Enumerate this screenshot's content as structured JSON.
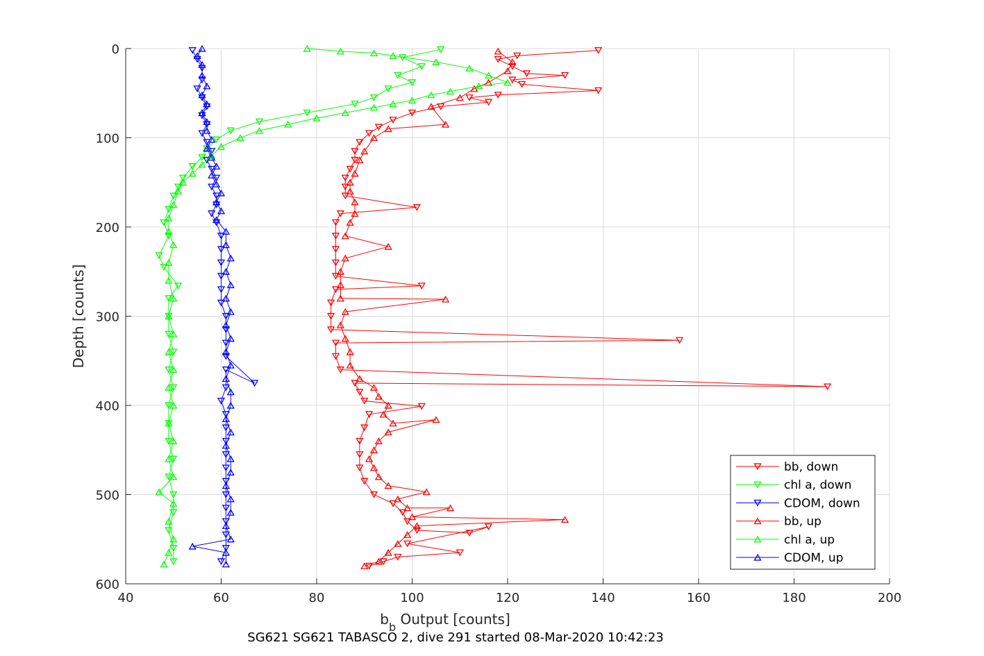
{
  "chart_data": {
    "type": "scatter",
    "title": "",
    "xlabel": "b",
    "xlabel_subscript": "b",
    "xlabel_rest": " Output [counts]",
    "ylabel": "Depth [counts]",
    "caption": "SG621 SG621 TABASCO 2, dive 291 started 08-Mar-2020 10:42:23",
    "xlim": [
      40,
      200
    ],
    "ylim": [
      0,
      600
    ],
    "y_reversed": true,
    "grid": true,
    "legend_placement": "bottom-right",
    "x_ticks": [
      "40",
      "60",
      "80",
      "100",
      "120",
      "140",
      "160",
      "180",
      "200"
    ],
    "y_ticks": [
      "0",
      "100",
      "200",
      "300",
      "400",
      "500",
      "600"
    ],
    "series": [
      {
        "name": "bb, down",
        "color": "#ff0000",
        "marker": "triangle-down",
        "points": [
          [
            139,
            2
          ],
          [
            122,
            8
          ],
          [
            118,
            12
          ],
          [
            121,
            20
          ],
          [
            124,
            28
          ],
          [
            132,
            30
          ],
          [
            121,
            35
          ],
          [
            123,
            40
          ],
          [
            139,
            47
          ],
          [
            118,
            52
          ],
          [
            112,
            55
          ],
          [
            116,
            60
          ],
          [
            106,
            65
          ],
          [
            100,
            72
          ],
          [
            96,
            80
          ],
          [
            93,
            88
          ],
          [
            91,
            95
          ],
          [
            89,
            105
          ],
          [
            88,
            115
          ],
          [
            88,
            125
          ],
          [
            87,
            135
          ],
          [
            86,
            145
          ],
          [
            86,
            155
          ],
          [
            86,
            165
          ],
          [
            101,
            178
          ],
          [
            85,
            185
          ],
          [
            84,
            195
          ],
          [
            84,
            210
          ],
          [
            84,
            225
          ],
          [
            84,
            240
          ],
          [
            84,
            255
          ],
          [
            102,
            266
          ],
          [
            84,
            270
          ],
          [
            83,
            285
          ],
          [
            83,
            300
          ],
          [
            83,
            315
          ],
          [
            156,
            327
          ],
          [
            84,
            330
          ],
          [
            84,
            345
          ],
          [
            85,
            360
          ],
          [
            187,
            379
          ],
          [
            88,
            375
          ],
          [
            89,
            385
          ],
          [
            90,
            395
          ],
          [
            102,
            401
          ],
          [
            91,
            410
          ],
          [
            90,
            425
          ],
          [
            89,
            440
          ],
          [
            89,
            455
          ],
          [
            89,
            470
          ],
          [
            90,
            485
          ],
          [
            92,
            500
          ],
          [
            96,
            510
          ],
          [
            98,
            520
          ],
          [
            99,
            530
          ],
          [
            101,
            540
          ],
          [
            112,
            543
          ],
          [
            116,
            536
          ],
          [
            99,
            555
          ],
          [
            110,
            565
          ],
          [
            97,
            570
          ],
          [
            94,
            575
          ],
          [
            91,
            580
          ]
        ]
      },
      {
        "name": "chl a, down",
        "color": "#00ff00",
        "marker": "triangle-down",
        "points": [
          [
            106,
            1
          ],
          [
            98,
            10
          ],
          [
            102,
            20
          ],
          [
            97,
            30
          ],
          [
            100,
            38
          ],
          [
            95,
            45
          ],
          [
            92,
            55
          ],
          [
            88,
            62
          ],
          [
            78,
            72
          ],
          [
            68,
            82
          ],
          [
            62,
            92
          ],
          [
            59,
            102
          ],
          [
            57,
            112
          ],
          [
            56,
            122
          ],
          [
            54,
            132
          ],
          [
            52,
            145
          ],
          [
            51,
            155
          ],
          [
            50,
            165
          ],
          [
            49,
            180
          ],
          [
            48,
            195
          ],
          [
            49,
            210
          ],
          [
            47,
            232
          ],
          [
            48,
            245
          ],
          [
            51,
            266
          ],
          [
            49,
            280
          ],
          [
            49,
            300
          ],
          [
            49,
            320
          ],
          [
            50,
            340
          ],
          [
            49,
            360
          ],
          [
            50,
            380
          ],
          [
            49,
            400
          ],
          [
            49,
            420
          ],
          [
            49,
            440
          ],
          [
            50,
            460
          ],
          [
            49,
            480
          ],
          [
            50,
            500
          ],
          [
            50,
            520
          ],
          [
            49,
            540
          ],
          [
            50,
            560
          ],
          [
            50,
            575
          ]
        ]
      },
      {
        "name": "CDOM, down",
        "color": "#0000ff",
        "marker": "triangle-down",
        "points": [
          [
            54,
            2
          ],
          [
            55,
            12
          ],
          [
            56,
            22
          ],
          [
            56,
            35
          ],
          [
            55,
            45
          ],
          [
            56,
            55
          ],
          [
            57,
            65
          ],
          [
            56,
            75
          ],
          [
            57,
            85
          ],
          [
            56,
            95
          ],
          [
            57,
            105
          ],
          [
            58,
            115
          ],
          [
            57,
            125
          ],
          [
            58,
            135
          ],
          [
            59,
            145
          ],
          [
            58,
            155
          ],
          [
            59,
            165
          ],
          [
            59,
            175
          ],
          [
            58,
            185
          ],
          [
            59,
            195
          ],
          [
            60,
            210
          ],
          [
            60,
            225
          ],
          [
            60,
            240
          ],
          [
            60,
            255
          ],
          [
            60,
            270
          ],
          [
            60,
            285
          ],
          [
            61,
            300
          ],
          [
            61,
            315
          ],
          [
            61,
            330
          ],
          [
            61,
            345
          ],
          [
            67,
            375
          ],
          [
            61,
            360
          ],
          [
            61,
            380
          ],
          [
            60,
            395
          ],
          [
            61,
            410
          ],
          [
            61,
            425
          ],
          [
            61,
            440
          ],
          [
            61,
            455
          ],
          [
            61,
            470
          ],
          [
            61,
            485
          ],
          [
            61,
            500
          ],
          [
            61,
            515
          ],
          [
            61,
            530
          ],
          [
            61,
            545
          ],
          [
            61,
            560
          ],
          [
            60,
            575
          ]
        ]
      },
      {
        "name": "bb, up",
        "color": "#ff0000",
        "marker": "triangle-up",
        "points": [
          [
            118,
            3
          ],
          [
            121,
            15
          ],
          [
            120,
            25
          ],
          [
            116,
            38
          ],
          [
            113,
            45
          ],
          [
            110,
            55
          ],
          [
            104,
            65
          ],
          [
            107,
            85
          ],
          [
            95,
            90
          ],
          [
            92,
            100
          ],
          [
            90,
            115
          ],
          [
            89,
            125
          ],
          [
            88,
            140
          ],
          [
            87,
            150
          ],
          [
            87,
            160
          ],
          [
            88,
            172
          ],
          [
            88,
            185
          ],
          [
            87,
            195
          ],
          [
            86,
            210
          ],
          [
            95,
            222
          ],
          [
            86,
            235
          ],
          [
            85,
            250
          ],
          [
            85,
            265
          ],
          [
            85,
            280
          ],
          [
            107,
            281
          ],
          [
            86,
            295
          ],
          [
            85,
            310
          ],
          [
            86,
            325
          ],
          [
            87,
            340
          ],
          [
            87,
            355
          ],
          [
            89,
            370
          ],
          [
            92,
            380
          ],
          [
            93,
            390
          ],
          [
            95,
            400
          ],
          [
            94,
            410
          ],
          [
            96,
            420
          ],
          [
            105,
            416
          ],
          [
            95,
            430
          ],
          [
            93,
            440
          ],
          [
            92,
            450
          ],
          [
            91,
            460
          ],
          [
            92,
            470
          ],
          [
            93,
            480
          ],
          [
            95,
            490
          ],
          [
            103,
            497
          ],
          [
            97,
            505
          ],
          [
            99,
            515
          ],
          [
            108,
            515
          ],
          [
            100,
            525
          ],
          [
            132,
            528
          ],
          [
            101,
            535
          ],
          [
            99,
            545
          ],
          [
            97,
            555
          ],
          [
            95,
            565
          ],
          [
            93,
            575
          ],
          [
            90,
            580
          ]
        ]
      },
      {
        "name": "chl a, up",
        "color": "#00ff00",
        "marker": "triangle-up",
        "points": [
          [
            78,
            0
          ],
          [
            85,
            3
          ],
          [
            92,
            5
          ],
          [
            96,
            8
          ],
          [
            105,
            15
          ],
          [
            112,
            22
          ],
          [
            116,
            30
          ],
          [
            120,
            38
          ],
          [
            114,
            42
          ],
          [
            108,
            48
          ],
          [
            104,
            52
          ],
          [
            100,
            58
          ],
          [
            96,
            62
          ],
          [
            92,
            66
          ],
          [
            86,
            72
          ],
          [
            80,
            78
          ],
          [
            74,
            85
          ],
          [
            68,
            92
          ],
          [
            64,
            100
          ],
          [
            60,
            110
          ],
          [
            58,
            120
          ],
          [
            56,
            130
          ],
          [
            54,
            140
          ],
          [
            52,
            150
          ],
          [
            51,
            160
          ],
          [
            50,
            175
          ],
          [
            49,
            190
          ],
          [
            49,
            205
          ],
          [
            50,
            220
          ],
          [
            49,
            240
          ],
          [
            49,
            260
          ],
          [
            50,
            280
          ],
          [
            49,
            300
          ],
          [
            50,
            320
          ],
          [
            49,
            340
          ],
          [
            50,
            360
          ],
          [
            49,
            380
          ],
          [
            50,
            400
          ],
          [
            49,
            420
          ],
          [
            50,
            440
          ],
          [
            49,
            460
          ],
          [
            50,
            480
          ],
          [
            47,
            497
          ],
          [
            50,
            510
          ],
          [
            49,
            530
          ],
          [
            50,
            550
          ],
          [
            49,
            565
          ],
          [
            48,
            578
          ]
        ]
      },
      {
        "name": "CDOM, up",
        "color": "#0000ff",
        "marker": "triangle-up",
        "points": [
          [
            56,
            0
          ],
          [
            55,
            8
          ],
          [
            56,
            18
          ],
          [
            56,
            30
          ],
          [
            57,
            42
          ],
          [
            56,
            52
          ],
          [
            57,
            62
          ],
          [
            56,
            72
          ],
          [
            57,
            82
          ],
          [
            57,
            92
          ],
          [
            58,
            102
          ],
          [
            57,
            112
          ],
          [
            58,
            122
          ],
          [
            59,
            132
          ],
          [
            58,
            142
          ],
          [
            59,
            152
          ],
          [
            60,
            162
          ],
          [
            59,
            172
          ],
          [
            60,
            182
          ],
          [
            59,
            192
          ],
          [
            61,
            205
          ],
          [
            61,
            220
          ],
          [
            62,
            235
          ],
          [
            61,
            250
          ],
          [
            62,
            265
          ],
          [
            61,
            280
          ],
          [
            62,
            295
          ],
          [
            61,
            310
          ],
          [
            62,
            325
          ],
          [
            61,
            340
          ],
          [
            62,
            355
          ],
          [
            61,
            370
          ],
          [
            62,
            385
          ],
          [
            62,
            400
          ],
          [
            61,
            415
          ],
          [
            62,
            430
          ],
          [
            61,
            445
          ],
          [
            62,
            460
          ],
          [
            62,
            475
          ],
          [
            61,
            490
          ],
          [
            62,
            505
          ],
          [
            62,
            520
          ],
          [
            61,
            535
          ],
          [
            62,
            550
          ],
          [
            54,
            558
          ],
          [
            61,
            565
          ],
          [
            61,
            578
          ]
        ]
      }
    ]
  }
}
